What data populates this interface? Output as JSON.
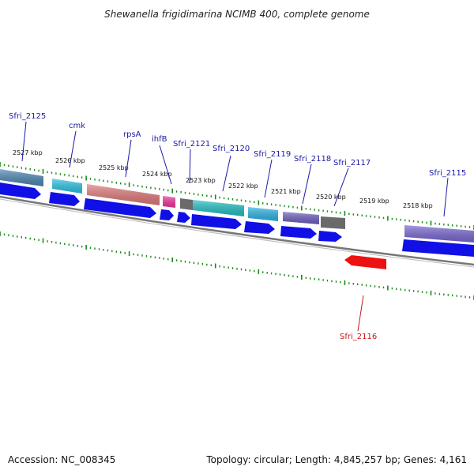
{
  "title": "Shewanella frigidimarina NCIMB 400, complete genome",
  "footer": {
    "accession": "Accession: NC_008345",
    "summary": "Topology: circular; Length: 4,845,257 bp; Genes: 4,161"
  },
  "ticks": [
    {
      "label": "2527 kbp"
    },
    {
      "label": "2526 kbp"
    },
    {
      "label": "2525 kbp"
    },
    {
      "label": "2524 kbp"
    },
    {
      "label": "2523 kbp"
    },
    {
      "label": "2522 kbp"
    },
    {
      "label": "2521 kbp"
    },
    {
      "label": "2520 kbp"
    },
    {
      "label": "2519 kbp"
    },
    {
      "label": "2518 kbp"
    }
  ],
  "genes": [
    {
      "name": "Sfri_2125",
      "color": "#4f86b4"
    },
    {
      "name": "cmk",
      "color": "#2ec3e6"
    },
    {
      "name": "rpsA",
      "color": "#e07a7a"
    },
    {
      "name": "ihfB",
      "color": "#f0359c"
    },
    {
      "name": "Sfri_2121",
      "color": "#6a6a6a"
    },
    {
      "name": "Sfri_2120",
      "color": "#22c0c4"
    },
    {
      "name": "Sfri_2119",
      "color": "#2eb4e6"
    },
    {
      "name": "Sfri_2118",
      "color": "#6f60c0"
    },
    {
      "name": "Sfri_2117",
      "color": "#6a6a6a"
    },
    {
      "name": "Sfri_2116",
      "color": "#ee1111"
    },
    {
      "name": "Sfri_2115",
      "color": "#7a68d2"
    }
  ],
  "colors": {
    "cds": "#1010e6",
    "backbone": "#777777",
    "tick": "#1a8a1a"
  }
}
